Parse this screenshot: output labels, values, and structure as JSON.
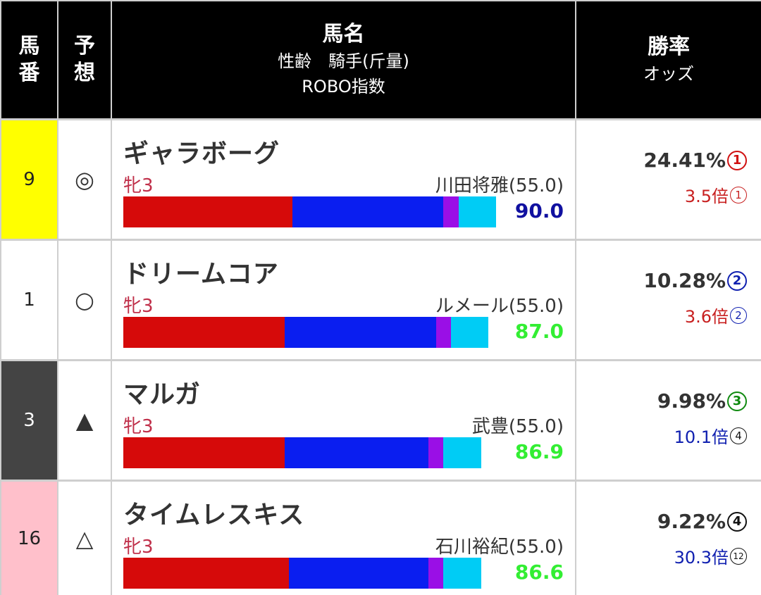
{
  "header": {
    "umaban": [
      "馬",
      "番"
    ],
    "yoso": [
      "予",
      "想"
    ],
    "horse_name": "馬名",
    "sex_age_jockey": "性齢　騎手(斤量)",
    "robo_index": "ROBO指数",
    "win_rate": "勝率",
    "odds": "オッズ"
  },
  "colors": {
    "bar_segments": [
      "#d60a0a",
      "#0a1ef0",
      "#9a0fe6",
      "#00ccf5"
    ],
    "score_blue": "#1010a0",
    "score_green": "#33ee33",
    "rank_red": "#d01010",
    "rank_blue": "#1020b0",
    "rank_green": "#108a10",
    "rank_black": "#111111"
  },
  "rows": [
    {
      "number": "9",
      "number_bg": "#ffff00",
      "number_color": "#222222",
      "mark": "◎",
      "name": "ギャラボーグ",
      "sex_age": "牝3",
      "jockey": "川田将雅(55.0)",
      "bar": [
        240,
        214,
        22,
        53
      ],
      "score": "90.0",
      "score_color": "#1010a0",
      "win_rate": "24.41%",
      "win_rank": "1",
      "win_rank_color": "#d01010",
      "odds": "3.5倍",
      "odds_color": "#c82020",
      "odds_rank": "1",
      "odds_rank_color": "#c82020"
    },
    {
      "number": "1",
      "number_bg": "#ffffff",
      "number_color": "#222222",
      "mark": "○",
      "name": "ドリームコア",
      "sex_age": "牝3",
      "jockey": "ルメール(55.0)",
      "bar": [
        229,
        215,
        21,
        53
      ],
      "score": "87.0",
      "score_color": "#33ee33",
      "win_rate": "10.28%",
      "win_rank": "2",
      "win_rank_color": "#1020b0",
      "odds": "3.6倍",
      "odds_color": "#c82020",
      "odds_rank": "2",
      "odds_rank_color": "#1020b0"
    },
    {
      "number": "3",
      "number_bg": "#444444",
      "number_color": "#ffffff",
      "mark": "▲",
      "name": "マルガ",
      "sex_age": "牝3",
      "jockey": "武豊(55.0)",
      "bar": [
        229,
        204,
        21,
        54
      ],
      "score": "86.9",
      "score_color": "#33ee33",
      "win_rate": "9.98%",
      "win_rank": "3",
      "win_rank_color": "#108a10",
      "odds": "10.1倍",
      "odds_color": "#1020b0",
      "odds_rank": "4",
      "odds_rank_color": "#111111"
    },
    {
      "number": "16",
      "number_bg": "#ffc0cb",
      "number_color": "#222222",
      "mark": "△",
      "name": "タイムレスキス",
      "sex_age": "牝3",
      "jockey": "石川裕紀(55.0)",
      "bar": [
        235,
        198,
        21,
        54
      ],
      "score": "86.6",
      "score_color": "#33ee33",
      "win_rate": "9.22%",
      "win_rank": "4",
      "win_rank_color": "#111111",
      "odds": "30.3倍",
      "odds_color": "#1020b0",
      "odds_rank": "12",
      "odds_rank_color": "#111111"
    }
  ]
}
